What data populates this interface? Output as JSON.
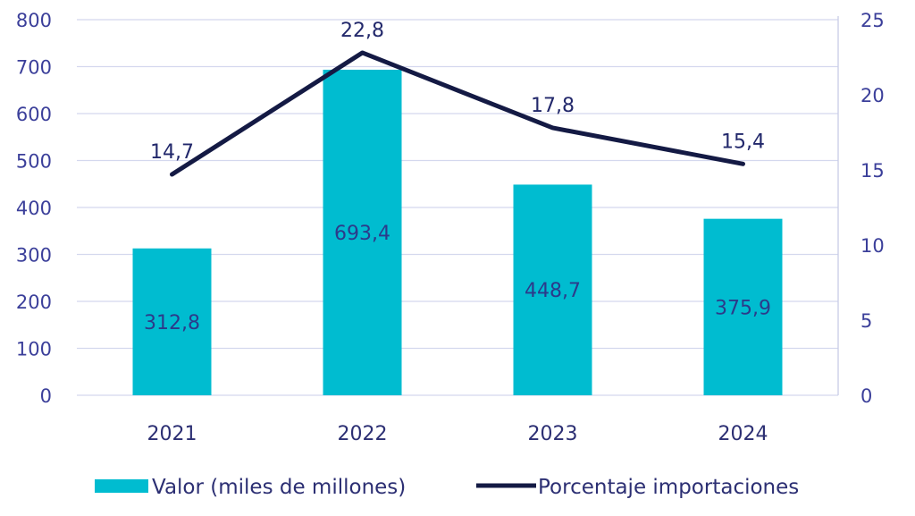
{
  "chart_data": {
    "type": "bar+line",
    "categories": [
      "2021",
      "2022",
      "2023",
      "2024"
    ],
    "series": [
      {
        "name": "Valor (miles de millones)",
        "type": "bar",
        "axis": "left",
        "values": [
          312.8,
          693.4,
          448.7,
          375.9
        ],
        "labels": [
          "312,8",
          "693,4",
          "448,7",
          "375,9"
        ],
        "color": "#00bcd0"
      },
      {
        "name": "Porcentaje importaciones",
        "type": "line",
        "axis": "right",
        "values": [
          14.7,
          22.8,
          17.8,
          15.4
        ],
        "labels": [
          "14,7",
          "22,8",
          "17,8",
          "15,4"
        ],
        "color": "#141a44"
      }
    ],
    "y_left": {
      "min": 0,
      "max": 800,
      "ticks": [
        "0",
        "100",
        "200",
        "300",
        "400",
        "500",
        "600",
        "700",
        "800"
      ]
    },
    "y_right": {
      "min": 0,
      "max": 25,
      "ticks": [
        "0",
        "5",
        "10",
        "15",
        "20",
        "25"
      ]
    },
    "grid": true,
    "legend_position": "bottom",
    "title": ""
  }
}
